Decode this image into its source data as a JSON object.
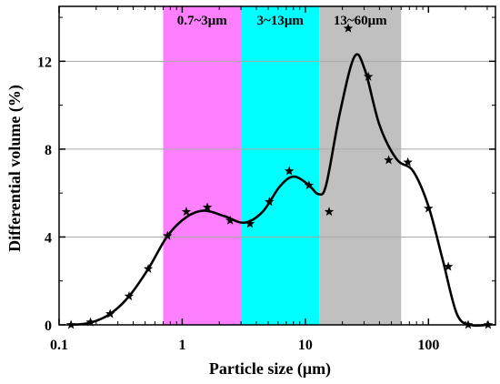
{
  "chart_data": {
    "type": "line",
    "xlabel": "Particle size (μm)",
    "ylabel": "Differential volume (%)",
    "x_scale": "log",
    "xlim": [
      0.1,
      350
    ],
    "ylim": [
      0,
      14.5
    ],
    "x_ticks": [
      {
        "value": 0.1,
        "label": "0.1"
      },
      {
        "value": 1,
        "label": "1"
      },
      {
        "value": 10,
        "label": "10"
      },
      {
        "value": 100,
        "label": "100"
      }
    ],
    "y_ticks": [
      {
        "value": 0,
        "label": "0"
      },
      {
        "value": 4,
        "label": "4"
      },
      {
        "value": 8,
        "label": "8"
      },
      {
        "value": 12,
        "label": "12"
      }
    ],
    "grid": "horizontal",
    "bands": [
      {
        "label": "0.7~3μm",
        "from": 0.7,
        "to": 3,
        "color": "#ff80ff"
      },
      {
        "label": "3~13μm",
        "from": 3,
        "to": 13,
        "color": "#00ffff"
      },
      {
        "label": "13~60μm",
        "from": 13,
        "to": 60,
        "color": "#c0c0c0"
      }
    ],
    "series": [
      {
        "style": "stars",
        "color": "#000000",
        "points": [
          [
            0.125,
            0.0
          ],
          [
            0.18,
            0.12
          ],
          [
            0.26,
            0.5
          ],
          [
            0.37,
            1.3
          ],
          [
            0.53,
            2.55
          ],
          [
            0.76,
            4.05
          ],
          [
            1.08,
            5.15
          ],
          [
            1.6,
            5.35
          ],
          [
            2.45,
            4.75
          ],
          [
            3.55,
            4.6
          ],
          [
            5.1,
            5.6
          ],
          [
            7.4,
            7.0
          ],
          [
            10.7,
            6.35
          ],
          [
            15.6,
            5.15
          ],
          [
            22.3,
            13.5
          ],
          [
            32.5,
            11.3
          ],
          [
            47.5,
            7.5
          ],
          [
            68.0,
            7.4
          ],
          [
            100.0,
            5.3
          ],
          [
            145.0,
            2.65
          ],
          [
            210.0,
            0.0
          ],
          [
            305.0,
            0.0
          ]
        ]
      },
      {
        "style": "smooth-line",
        "color": "#000000",
        "points": [
          [
            0.125,
            0.0
          ],
          [
            0.18,
            0.1
          ],
          [
            0.26,
            0.5
          ],
          [
            0.37,
            1.3
          ],
          [
            0.53,
            2.55
          ],
          [
            0.76,
            4.05
          ],
          [
            1.08,
            4.9
          ],
          [
            1.5,
            5.2
          ],
          [
            2.2,
            4.95
          ],
          [
            3.2,
            4.65
          ],
          [
            4.5,
            5.15
          ],
          [
            6.2,
            6.3
          ],
          [
            8.0,
            6.75
          ],
          [
            10.5,
            6.4
          ],
          [
            12.8,
            5.95
          ],
          [
            14.8,
            6.4
          ],
          [
            19.0,
            9.6
          ],
          [
            25.0,
            12.2
          ],
          [
            30.5,
            11.6
          ],
          [
            40.0,
            9.1
          ],
          [
            55.0,
            7.55
          ],
          [
            75.0,
            7.0
          ],
          [
            100.0,
            5.4
          ],
          [
            130.0,
            3.0
          ],
          [
            170.0,
            0.5
          ],
          [
            220.0,
            0.0
          ],
          [
            300.0,
            0.0
          ]
        ]
      }
    ]
  }
}
